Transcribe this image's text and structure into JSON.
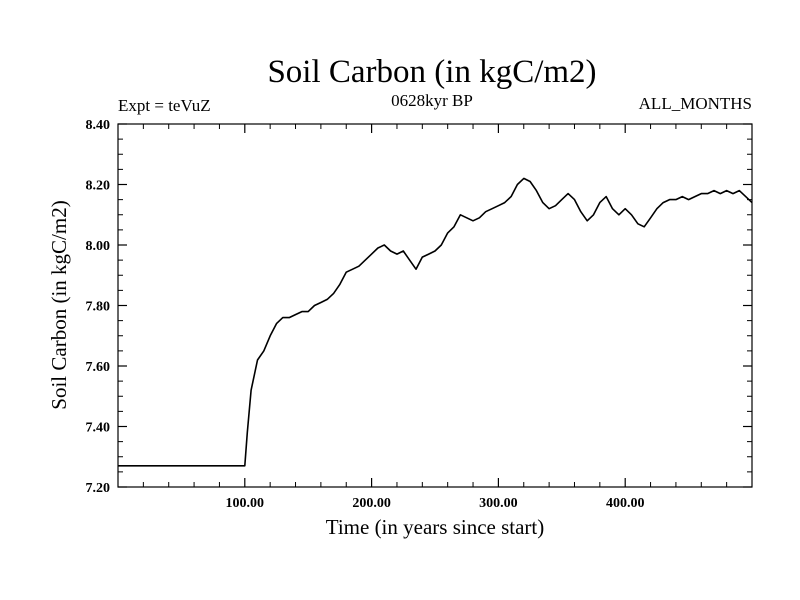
{
  "header": {
    "title": "Soil Carbon (in kgC/m2)",
    "subtitle": "0628kyr BP",
    "left_label": "Expt = teVuZ",
    "right_label": "ALL_MONTHS"
  },
  "chart_data": {
    "type": "line",
    "title": "Soil Carbon (in kgC/m2)",
    "xlabel": "Time (in years since start)",
    "ylabel": "Soil Carbon (in kgC/m2)",
    "xlim": [
      0,
      500
    ],
    "ylim": [
      7.2,
      8.4
    ],
    "x_ticks": [
      100,
      200,
      300,
      400
    ],
    "x_tick_labels": [
      "100.00",
      "200.00",
      "300.00",
      "400.00"
    ],
    "y_ticks": [
      7.2,
      7.4,
      7.6,
      7.8,
      8.0,
      8.2,
      8.4
    ],
    "y_tick_labels": [
      "7.20",
      "7.40",
      "7.60",
      "7.80",
      "8.00",
      "8.20",
      "8.40"
    ],
    "grid": false,
    "line_color": "#000000",
    "series": [
      {
        "x": [
          0,
          100,
          102,
          105,
          110,
          115,
          120,
          125,
          130,
          135,
          140,
          145,
          150,
          155,
          160,
          165,
          170,
          175,
          180,
          185,
          190,
          195,
          200,
          205,
          210,
          215,
          220,
          225,
          230,
          235,
          240,
          245,
          250,
          255,
          260,
          265,
          270,
          275,
          280,
          285,
          290,
          295,
          300,
          305,
          310,
          315,
          320,
          325,
          330,
          335,
          340,
          345,
          350,
          355,
          360,
          365,
          370,
          375,
          380,
          385,
          390,
          395,
          400,
          405,
          410,
          415,
          420,
          425,
          430,
          435,
          440,
          445,
          450,
          455,
          460,
          465,
          470,
          475,
          480,
          485,
          490,
          495,
          500
        ],
        "values": [
          7.27,
          7.27,
          7.38,
          7.52,
          7.62,
          7.65,
          7.7,
          7.74,
          7.76,
          7.76,
          7.77,
          7.78,
          7.78,
          7.8,
          7.81,
          7.82,
          7.84,
          7.87,
          7.91,
          7.92,
          7.93,
          7.95,
          7.97,
          7.99,
          8.0,
          7.98,
          7.97,
          7.98,
          7.95,
          7.92,
          7.96,
          7.97,
          7.98,
          8.0,
          8.04,
          8.06,
          8.1,
          8.09,
          8.08,
          8.09,
          8.11,
          8.12,
          8.13,
          8.14,
          8.16,
          8.2,
          8.22,
          8.21,
          8.18,
          8.14,
          8.12,
          8.13,
          8.15,
          8.17,
          8.15,
          8.11,
          8.08,
          8.1,
          8.14,
          8.16,
          8.12,
          8.1,
          8.12,
          8.1,
          8.07,
          8.06,
          8.09,
          8.12,
          8.14,
          8.15,
          8.15,
          8.16,
          8.15,
          8.16,
          8.17,
          8.17,
          8.18,
          8.17,
          8.18,
          8.17,
          8.18,
          8.16,
          8.14
        ]
      }
    ]
  }
}
